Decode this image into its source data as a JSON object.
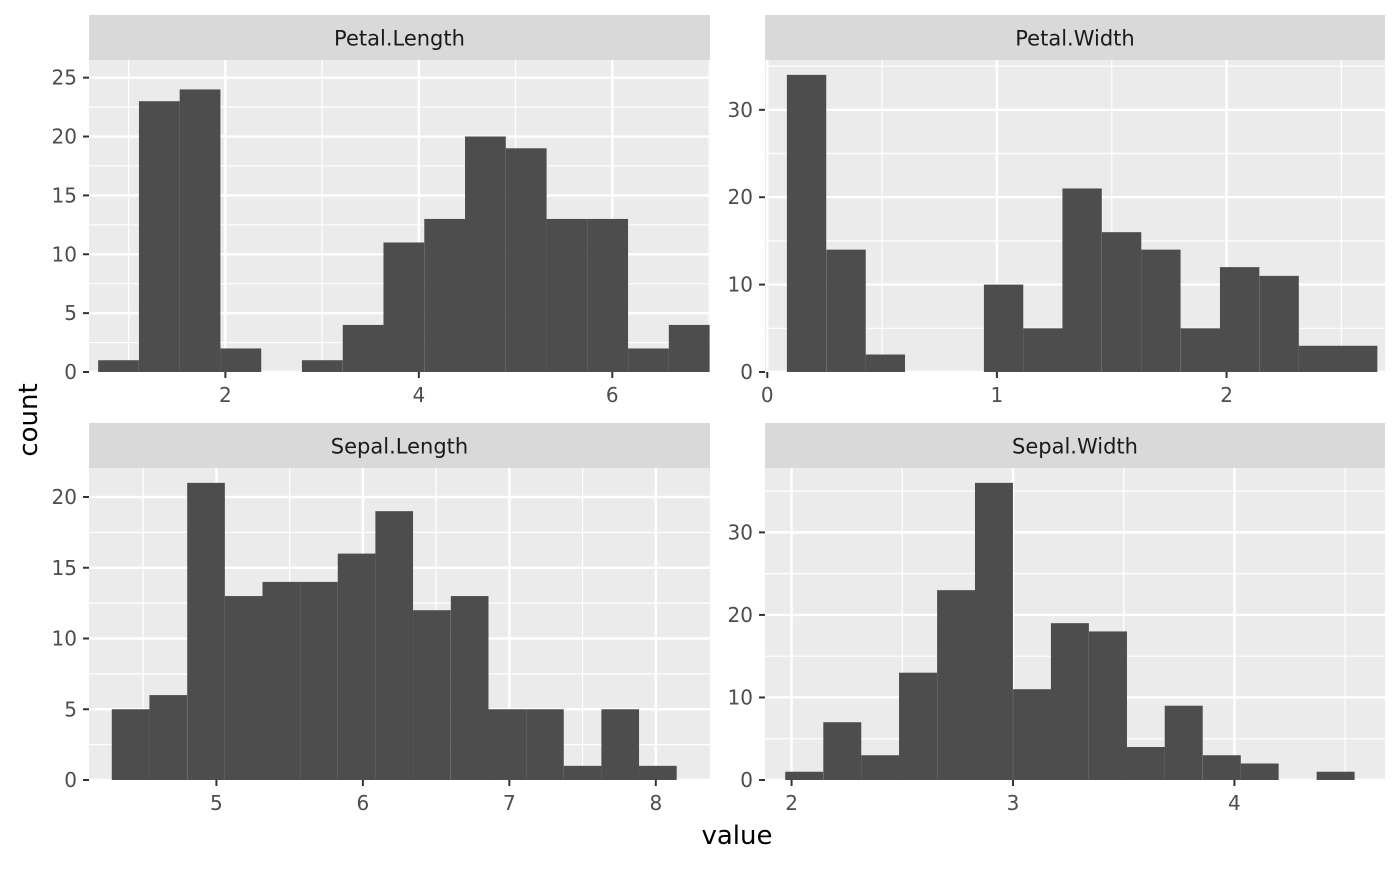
{
  "axis_titles": {
    "x": "value",
    "y": "count"
  },
  "colors": {
    "panel_bg": "#ebebeb",
    "strip_bg": "#d9d9d9",
    "bar": "#4d4d4d",
    "grid": "#ffffff",
    "tick_text": "#4d4d4d",
    "title_text": "#000000"
  },
  "chart_data": [
    {
      "type": "bar",
      "title": "Petal.Length",
      "xlim": [
        0.59,
        7.01
      ],
      "ylim": [
        0,
        26.5
      ],
      "x_ticks": [
        2,
        4,
        6
      ],
      "x_tick_labels": [
        "2",
        "4",
        "6"
      ],
      "y_ticks": [
        0,
        5,
        10,
        15,
        20,
        25
      ],
      "y_tick_labels": [
        "0",
        "5",
        "10",
        "15",
        "20",
        "25"
      ],
      "bin_width": 0.4214,
      "bin_centers": [
        0.895,
        1.317,
        1.738,
        2.16,
        2.581,
        3.002,
        3.424,
        3.845,
        4.267,
        4.688,
        5.11,
        5.531,
        5.952,
        6.374,
        6.795
      ],
      "values": [
        1,
        23,
        24,
        2,
        0,
        1,
        4,
        11,
        13,
        20,
        19,
        13,
        13,
        2,
        4
      ]
    },
    {
      "type": "bar",
      "title": "Petal.Width",
      "xlim": [
        -0.01,
        2.69
      ],
      "ylim": [
        0,
        35.7
      ],
      "x_ticks": [
        0,
        1,
        2
      ],
      "x_tick_labels": [
        "0",
        "1",
        "2"
      ],
      "y_ticks": [
        0,
        10,
        20,
        30
      ],
      "y_tick_labels": [
        "0",
        "10",
        "20",
        "30"
      ],
      "bin_width": 0.1714,
      "bin_centers": [
        0.171,
        0.343,
        0.514,
        0.686,
        0.857,
        1.029,
        1.2,
        1.371,
        1.543,
        1.714,
        1.886,
        2.057,
        2.229,
        2.4,
        2.571
      ],
      "values": [
        34,
        14,
        2,
        0,
        0,
        10,
        5,
        21,
        16,
        14,
        5,
        12,
        11,
        3,
        3
      ]
    },
    {
      "type": "bar",
      "title": "Sepal.Length",
      "xlim": [
        4.13,
        8.37
      ],
      "ylim": [
        0,
        22.05
      ],
      "x_ticks": [
        5,
        6,
        7,
        8
      ],
      "x_tick_labels": [
        "5",
        "6",
        "7",
        "8"
      ],
      "y_ticks": [
        0,
        5,
        10,
        15,
        20
      ],
      "y_tick_labels": [
        "0",
        "5",
        "10",
        "15",
        "20"
      ],
      "bin_width": 0.2571,
      "bin_centers": [
        4.414,
        4.671,
        4.929,
        5.186,
        5.443,
        5.7,
        5.957,
        6.214,
        6.471,
        6.729,
        6.986,
        7.243,
        7.5,
        7.757,
        8.014
      ],
      "values": [
        5,
        6,
        21,
        13,
        14,
        14,
        16,
        19,
        12,
        13,
        5,
        5,
        1,
        5,
        1
      ]
    },
    {
      "type": "bar",
      "title": "Sepal.Width",
      "xlim": [
        1.88,
        4.68
      ],
      "ylim": [
        0,
        37.8
      ],
      "x_ticks": [
        2,
        3,
        4
      ],
      "x_tick_labels": [
        "2",
        "3",
        "4"
      ],
      "y_ticks": [
        0,
        10,
        20,
        30
      ],
      "y_tick_labels": [
        "0",
        "10",
        "20",
        "30"
      ],
      "bin_width": 0.1714,
      "bin_centers": [
        2.057,
        2.229,
        2.4,
        2.571,
        2.743,
        2.914,
        3.086,
        3.257,
        3.429,
        3.6,
        3.771,
        3.943,
        4.114,
        4.286,
        4.457
      ],
      "values": [
        1,
        7,
        3,
        13,
        23,
        36,
        11,
        19,
        18,
        4,
        9,
        3,
        2,
        0,
        1
      ]
    }
  ]
}
